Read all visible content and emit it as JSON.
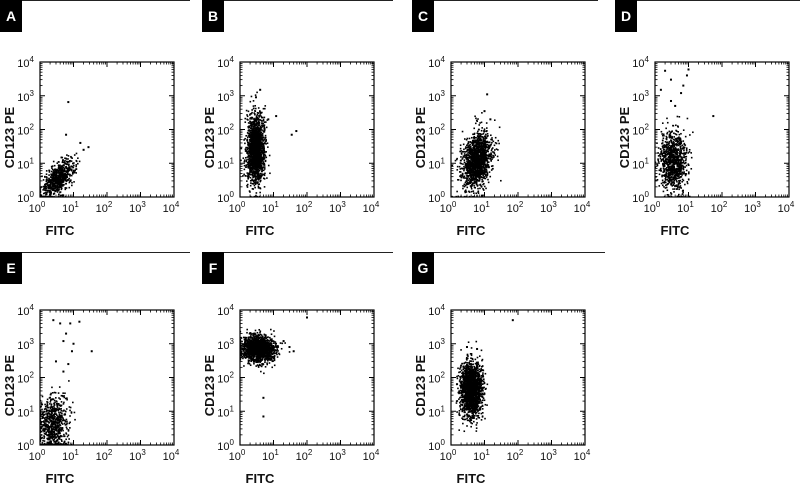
{
  "chart_data": [
    {
      "type": "scatter",
      "panel": "A",
      "xlabel": "FITC",
      "ylabel": "CD123 PE",
      "xscale": "log",
      "yscale": "log",
      "xlim": [
        1,
        10000
      ],
      "ylim": [
        1,
        10000
      ],
      "xticks": [
        "10",
        "10",
        "10",
        "10",
        "10"
      ],
      "xtick_exponents": [
        "0",
        "1",
        "2",
        "3",
        "4"
      ],
      "yticks": [
        "10",
        "10",
        "10",
        "10",
        "10"
      ],
      "ytick_exponents": [
        "0",
        "1",
        "2",
        "3",
        "4"
      ],
      "cluster": {
        "center": [
          3.5,
          3.5
        ],
        "spread_decades": [
          0.25,
          0.22
        ],
        "count": 700,
        "tilt": 0.7
      },
      "points": [
        [
          7,
          650
        ],
        [
          16,
          40
        ],
        [
          20,
          25
        ],
        [
          6,
          70
        ],
        [
          28,
          30
        ]
      ]
    },
    {
      "type": "scatter",
      "panel": "B",
      "xlabel": "FITC",
      "ylabel": "CD123 PE",
      "xscale": "log",
      "yscale": "log",
      "xlim": [
        1,
        10000
      ],
      "ylim": [
        1,
        10000
      ],
      "xticks": [
        "10",
        "10",
        "10",
        "10",
        "10"
      ],
      "xtick_exponents": [
        "0",
        "1",
        "2",
        "3",
        "4"
      ],
      "yticks": [
        "10",
        "10",
        "10",
        "10",
        "10"
      ],
      "ytick_exponents": [
        "0",
        "1",
        "2",
        "3",
        "4"
      ],
      "cluster": {
        "center": [
          3,
          25
        ],
        "spread_decades": [
          0.13,
          0.5
        ],
        "count": 1600,
        "tilt": 0
      },
      "points": [
        [
          4,
          1500
        ],
        [
          3,
          900
        ],
        [
          35,
          70
        ],
        [
          48,
          90
        ],
        [
          12,
          250
        ],
        [
          7,
          200
        ]
      ]
    },
    {
      "type": "scatter",
      "panel": "C",
      "xlabel": "FITC",
      "ylabel": "CD123 PE",
      "xscale": "log",
      "yscale": "log",
      "xlim": [
        1,
        10000
      ],
      "ylim": [
        1,
        10000
      ],
      "xticks": [
        "10",
        "10",
        "10",
        "10",
        "10"
      ],
      "xtick_exponents": [
        "0",
        "1",
        "2",
        "3",
        "4"
      ],
      "yticks": [
        "10",
        "10",
        "10",
        "10",
        "10"
      ],
      "ytick_exponents": [
        "0",
        "1",
        "2",
        "3",
        "4"
      ],
      "cluster": {
        "center": [
          6,
          12
        ],
        "spread_decades": [
          0.22,
          0.4
        ],
        "count": 1400,
        "tilt": 0.5
      },
      "points": [
        [
          12,
          1100
        ],
        [
          10,
          350
        ],
        [
          15,
          200
        ]
      ]
    },
    {
      "type": "scatter",
      "panel": "D",
      "xlabel": "FITC",
      "ylabel": "CD123 PE",
      "xscale": "log",
      "yscale": "log",
      "xlim": [
        1,
        10000
      ],
      "ylim": [
        1,
        10000
      ],
      "xticks": [
        "10",
        "10",
        "10",
        "10",
        "10"
      ],
      "xtick_exponents": [
        "0",
        "1",
        "2",
        "3",
        "4"
      ],
      "yticks": [
        "10",
        "10",
        "10",
        "10",
        "10"
      ],
      "ytick_exponents": [
        "0",
        "1",
        "2",
        "3",
        "4"
      ],
      "cluster": {
        "center": [
          3.5,
          12
        ],
        "spread_decades": [
          0.2,
          0.45
        ],
        "count": 900,
        "tilt": 0
      },
      "points": [
        [
          2,
          5500
        ],
        [
          3,
          3000
        ],
        [
          9,
          4000
        ],
        [
          10,
          6000
        ],
        [
          7,
          2000
        ],
        [
          3,
          700
        ],
        [
          4,
          500
        ],
        [
          55,
          250
        ],
        [
          1.5,
          1500
        ],
        [
          6,
          1200
        ]
      ]
    },
    {
      "type": "scatter",
      "panel": "E",
      "xlabel": "FITC",
      "ylabel": "CD123 PE",
      "xscale": "log",
      "yscale": "log",
      "xlim": [
        1,
        10000
      ],
      "ylim": [
        1,
        10000
      ],
      "xticks": [
        "10",
        "10",
        "10",
        "10",
        "10"
      ],
      "xtick_exponents": [
        "0",
        "1",
        "2",
        "3",
        "4"
      ],
      "yticks": [
        "10",
        "10",
        "10",
        "10",
        "10"
      ],
      "ytick_exponents": [
        "0",
        "1",
        "2",
        "3",
        "4"
      ],
      "cluster": {
        "center": [
          2.5,
          4
        ],
        "spread_decades": [
          0.22,
          0.45
        ],
        "count": 700,
        "tilt": 0
      },
      "points": [
        [
          2.5,
          5000
        ],
        [
          4,
          4000
        ],
        [
          8,
          4000
        ],
        [
          15,
          4500
        ],
        [
          6,
          2000
        ],
        [
          10,
          1000
        ],
        [
          5,
          1200
        ],
        [
          35,
          600
        ],
        [
          9,
          600
        ],
        [
          3,
          300
        ],
        [
          5,
          150
        ],
        [
          7,
          250
        ]
      ]
    },
    {
      "type": "scatter",
      "panel": "F",
      "xlabel": "FITC",
      "ylabel": "CD123 PE",
      "xscale": "log",
      "yscale": "log",
      "xlim": [
        1,
        10000
      ],
      "ylim": [
        1,
        10000
      ],
      "xticks": [
        "10",
        "10",
        "10",
        "10",
        "10"
      ],
      "xtick_exponents": [
        "0",
        "1",
        "2",
        "3",
        "4"
      ],
      "yticks": [
        "10",
        "10",
        "10",
        "10",
        "10"
      ],
      "ytick_exponents": [
        "0",
        "1",
        "2",
        "3",
        "4"
      ],
      "cluster": {
        "center": [
          3.5,
          700
        ],
        "spread_decades": [
          0.25,
          0.2
        ],
        "count": 1400,
        "tilt": 0
      },
      "points": [
        [
          100,
          6000
        ],
        [
          5,
          25
        ],
        [
          5,
          7
        ],
        [
          30,
          800
        ],
        [
          40,
          600
        ],
        [
          20,
          1200
        ],
        [
          1.5,
          1000
        ]
      ]
    },
    {
      "type": "scatter",
      "panel": "G",
      "xlabel": "FITC",
      "ylabel": "CD123 PE",
      "xscale": "log",
      "yscale": "log",
      "xlim": [
        1,
        10000
      ],
      "ylim": [
        1,
        10000
      ],
      "xticks": [
        "10",
        "10",
        "10",
        "10",
        "10"
      ],
      "xtick_exponents": [
        "0",
        "1",
        "2",
        "3",
        "4"
      ],
      "yticks": [
        "10",
        "10",
        "10",
        "10",
        "10"
      ],
      "ytick_exponents": [
        "0",
        "1",
        "2",
        "3",
        "4"
      ],
      "cluster": {
        "center": [
          4,
          45
        ],
        "spread_decades": [
          0.17,
          0.4
        ],
        "count": 1600,
        "tilt": 0
      },
      "points": [
        [
          70,
          5000
        ],
        [
          3,
          800
        ],
        [
          6,
          700
        ]
      ]
    }
  ]
}
